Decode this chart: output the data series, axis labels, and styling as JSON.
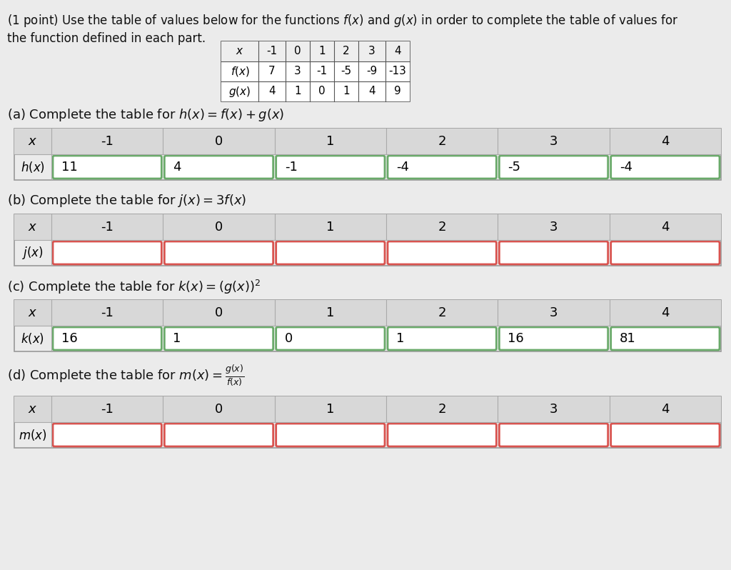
{
  "bg_color": "#ebebeb",
  "white": "#ffffff",
  "x_header": [
    "-1",
    "0",
    "1",
    "2",
    "3",
    "4"
  ],
  "f_vals": [
    "7",
    "3",
    "-1",
    "-5",
    "-9",
    "-13"
  ],
  "g_vals": [
    "4",
    "1",
    "0",
    "1",
    "4",
    "9"
  ],
  "part_a_vals": [
    "11",
    "4",
    "-1",
    "-4",
    "-5",
    "-4"
  ],
  "part_a_border": "#6aaa6a",
  "part_b_border": "#d9534f",
  "part_c_vals": [
    "16",
    "1",
    "0",
    "1",
    "16",
    "81"
  ],
  "part_c_border": "#6aaa6a",
  "part_d_border": "#d9534f",
  "table_outer_border": "#999999",
  "header_bg": "#d8d8d8",
  "cell_divider": "#aaaaaa"
}
